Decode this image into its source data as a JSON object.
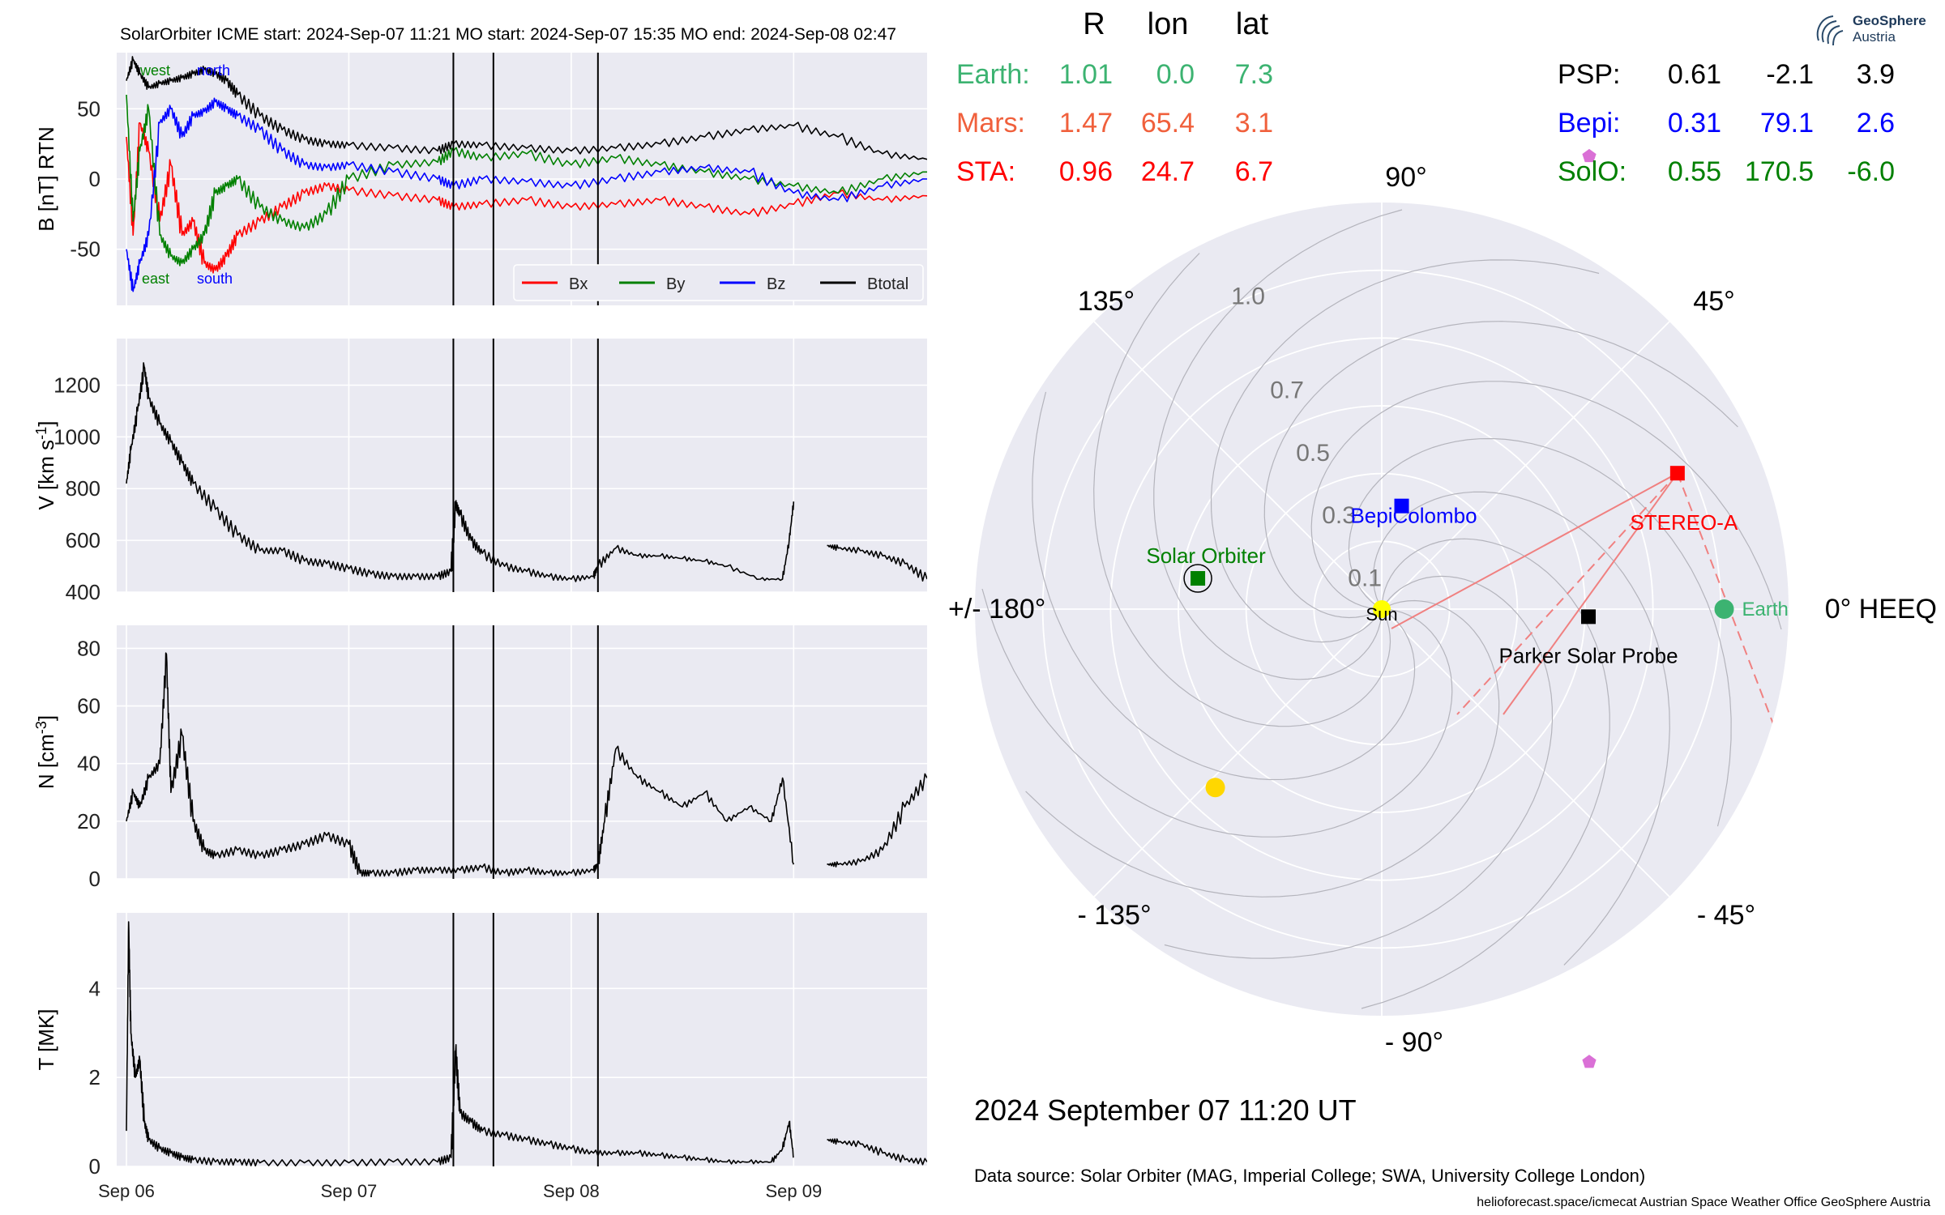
{
  "header": {
    "title": "SolarOrbiter    ICME start: 2024-Sep-07 11:21   MO start: 2024-Sep-07 15:35   MO end: 2024-Sep-08 02:47"
  },
  "colors": {
    "bx": "#ff0000",
    "by": "#008000",
    "bz": "#0000ff",
    "btotal": "#000000",
    "earth": "#3cb371",
    "mars": "#f0603c",
    "sta": "#ff0000",
    "psp": "#000000",
    "bepi": "#0000ff",
    "solo": "#008000",
    "planet_pink": "#da70d6",
    "sun": "#ffff00",
    "venus": "#ffd700",
    "panel_bg": "#eaeaf2"
  },
  "chart_data": [
    {
      "type": "line",
      "ylabel": "B [nT] RTN",
      "xticks": [
        "Sep 06",
        "Sep 07",
        "Sep 08",
        "Sep 09"
      ],
      "ylim": [
        -90,
        90
      ],
      "yticks": [
        -50,
        0,
        50
      ],
      "x_day_range": [
        0,
        3.6
      ],
      "event_lines_day": [
        1.47,
        1.65,
        2.12
      ],
      "direction_labels": {
        "west": "west",
        "north": "north",
        "east": "east",
        "south": "south"
      },
      "series": [
        {
          "name": "Bx",
          "color": "#ff0000",
          "x": [
            0,
            0.03,
            0.06,
            0.1,
            0.15,
            0.2,
            0.25,
            0.3,
            0.35,
            0.4,
            0.45,
            0.5,
            0.6,
            0.7,
            0.8,
            0.9,
            1.0,
            1.2,
            1.4,
            1.47,
            1.6,
            1.8,
            2.0,
            2.2,
            2.4,
            2.6,
            2.8,
            3.0,
            3.2,
            3.4,
            3.6
          ],
          "y": [
            30,
            -40,
            40,
            20,
            -30,
            10,
            -40,
            -30,
            -60,
            -65,
            -55,
            -40,
            -30,
            -20,
            -10,
            -5,
            -8,
            -12,
            -15,
            -20,
            -18,
            -15,
            -20,
            -18,
            -15,
            -20,
            -25,
            -18,
            -10,
            -15,
            -12
          ]
        },
        {
          "name": "By",
          "color": "#008000",
          "x": [
            0,
            0.03,
            0.06,
            0.1,
            0.15,
            0.2,
            0.25,
            0.3,
            0.35,
            0.4,
            0.45,
            0.5,
            0.6,
            0.7,
            0.8,
            0.9,
            1.0,
            1.2,
            1.4,
            1.47,
            1.6,
            1.8,
            2.0,
            2.2,
            2.4,
            2.6,
            2.8,
            3.0,
            3.2,
            3.4,
            3.6
          ],
          "y": [
            60,
            -30,
            20,
            50,
            -40,
            -55,
            -60,
            -50,
            -40,
            -10,
            -5,
            0,
            -20,
            -30,
            -35,
            -25,
            0,
            10,
            12,
            20,
            15,
            18,
            10,
            15,
            10,
            5,
            0,
            -5,
            -10,
            0,
            5
          ]
        },
        {
          "name": "Bz",
          "color": "#0000ff",
          "x": [
            0,
            0.03,
            0.06,
            0.1,
            0.15,
            0.2,
            0.25,
            0.3,
            0.35,
            0.4,
            0.45,
            0.5,
            0.6,
            0.7,
            0.8,
            0.9,
            1.0,
            1.2,
            1.4,
            1.47,
            1.6,
            1.8,
            2.0,
            2.2,
            2.4,
            2.6,
            2.8,
            3.0,
            3.2,
            3.4,
            3.6
          ],
          "y": [
            -50,
            -80,
            -60,
            -40,
            40,
            50,
            30,
            45,
            48,
            55,
            50,
            45,
            35,
            20,
            10,
            8,
            10,
            5,
            0,
            -5,
            0,
            -2,
            -5,
            0,
            5,
            8,
            5,
            -10,
            -15,
            -5,
            0
          ]
        },
        {
          "name": "Btotal",
          "color": "#000000",
          "x": [
            0,
            0.03,
            0.06,
            0.1,
            0.15,
            0.2,
            0.25,
            0.3,
            0.35,
            0.4,
            0.45,
            0.5,
            0.6,
            0.7,
            0.8,
            0.9,
            1.0,
            1.2,
            1.4,
            1.47,
            1.6,
            1.8,
            2.0,
            2.2,
            2.4,
            2.6,
            2.8,
            3.0,
            3.2,
            3.4,
            3.6
          ],
          "y": [
            70,
            85,
            75,
            65,
            68,
            70,
            72,
            75,
            78,
            75,
            70,
            60,
            45,
            35,
            28,
            25,
            24,
            22,
            20,
            25,
            24,
            22,
            20,
            22,
            25,
            30,
            35,
            38,
            30,
            18,
            14
          ]
        }
      ]
    },
    {
      "type": "line",
      "ylabel": "V [km s$^{-1}$]",
      "ylim": [
        400,
        1380
      ],
      "yticks": [
        400,
        600,
        800,
        1000,
        1200
      ],
      "x_day_range": [
        0,
        3.6
      ],
      "series": [
        {
          "name": "",
          "color": "#000000",
          "segments": [
            {
              "x": [
                0,
                0.02,
                0.05,
                0.08,
                0.1,
                0.15,
                0.2,
                0.25,
                0.3,
                0.4,
                0.5,
                0.6,
                0.7,
                0.8,
                0.9,
                1.0,
                1.1,
                1.2,
                1.3,
                1.4,
                1.46,
                1.48,
                1.5,
                1.55,
                1.6,
                1.7,
                1.8,
                1.9,
                2.0,
                2.1,
                2.12,
                2.2,
                2.3,
                2.4,
                2.5,
                2.6,
                2.7,
                2.85,
                2.95,
                2.98,
                3.0
              ],
              "y": [
                820,
                950,
                1100,
                1270,
                1150,
                1050,
                980,
                900,
                820,
                720,
                620,
                560,
                560,
                520,
                510,
                490,
                470,
                460,
                460,
                460,
                480,
                740,
                700,
                600,
                550,
                500,
                480,
                460,
                450,
                460,
                500,
                570,
                540,
                540,
                530,
                520,
                500,
                450,
                450,
                600,
                750
              ]
            },
            {
              "x": [
                3.15,
                3.2,
                3.3,
                3.4,
                3.5,
                3.6
              ],
              "y": [
                580,
                570,
                560,
                540,
                510,
                450
              ]
            }
          ]
        }
      ]
    },
    {
      "type": "line",
      "ylabel": "N [cm$^{-3}$]",
      "ylim": [
        0,
        88
      ],
      "yticks": [
        0,
        20,
        40,
        60,
        80
      ],
      "x_day_range": [
        0,
        3.6
      ],
      "series": [
        {
          "name": "",
          "color": "#000000",
          "segments": [
            {
              "x": [
                0,
                0.03,
                0.06,
                0.1,
                0.15,
                0.18,
                0.2,
                0.25,
                0.3,
                0.35,
                0.4,
                0.5,
                0.6,
                0.7,
                0.8,
                0.9,
                1.0,
                1.05,
                1.1,
                1.2,
                1.3,
                1.4,
                1.5,
                1.6,
                1.7,
                1.8,
                1.9,
                2.0,
                2.1,
                2.12,
                2.15,
                2.2,
                2.3,
                2.4,
                2.5,
                2.6,
                2.7,
                2.8,
                2.9,
                2.95,
                3.0
              ],
              "y": [
                20,
                30,
                25,
                35,
                40,
                78,
                30,
                50,
                20,
                10,
                8,
                10,
                8,
                10,
                12,
                15,
                12,
                2,
                2,
                2,
                3,
                3,
                3,
                4,
                2,
                3,
                2,
                2,
                3,
                5,
                20,
                45,
                35,
                30,
                25,
                30,
                20,
                25,
                20,
                35,
                5
              ]
            },
            {
              "x": [
                3.15,
                3.2,
                3.3,
                3.4,
                3.5,
                3.6
              ],
              "y": [
                5,
                5,
                6,
                10,
                25,
                35
              ]
            }
          ]
        }
      ]
    },
    {
      "type": "line",
      "ylabel": "T [MK]",
      "ylim": [
        0,
        5.7
      ],
      "yticks": [
        0,
        2,
        4
      ],
      "x_day_range": [
        0,
        3.6
      ],
      "series": [
        {
          "name": "",
          "color": "#000000",
          "segments": [
            {
              "x": [
                0,
                0.01,
                0.02,
                0.04,
                0.06,
                0.08,
                0.1,
                0.15,
                0.2,
                0.25,
                0.3,
                0.4,
                0.5,
                0.6,
                0.8,
                1.0,
                1.2,
                1.4,
                1.46,
                1.48,
                1.5,
                1.55,
                1.6,
                1.7,
                1.8,
                1.9,
                2.0,
                2.1,
                2.2,
                2.3,
                2.4,
                2.5,
                2.6,
                2.7,
                2.8,
                2.9,
                2.95,
                2.98,
                3.0
              ],
              "y": [
                0.8,
                5.5,
                3.0,
                2.0,
                2.4,
                1.0,
                0.6,
                0.4,
                0.3,
                0.2,
                0.15,
                0.1,
                0.1,
                0.08,
                0.08,
                0.08,
                0.1,
                0.1,
                0.2,
                2.6,
                1.2,
                1.0,
                0.8,
                0.7,
                0.6,
                0.5,
                0.4,
                0.3,
                0.3,
                0.3,
                0.25,
                0.2,
                0.15,
                0.1,
                0.1,
                0.1,
                0.4,
                1.0,
                0.2
              ]
            },
            {
              "x": [
                3.15,
                3.2,
                3.3,
                3.4,
                3.5,
                3.6
              ],
              "y": [
                0.6,
                0.55,
                0.5,
                0.3,
                0.15,
                0.1
              ]
            }
          ]
        }
      ]
    },
    {
      "type": "scatter",
      "subtype": "polar",
      "angle_labels": [
        {
          "angle": 90,
          "text": "90°"
        },
        {
          "angle": 45,
          "text": "45°"
        },
        {
          "angle": 0,
          "text": "0° HEEQ"
        },
        {
          "angle": -45,
          "text": "- 45°"
        },
        {
          "angle": -90,
          "text": "- 90°"
        },
        {
          "angle": -135,
          "text": "- 135°"
        },
        {
          "angle": 180,
          "text": "+/- 180°"
        },
        {
          "angle": 135,
          "text": "135°"
        }
      ],
      "r_ticks": [
        {
          "r": 0.1,
          "text": "0.1"
        },
        {
          "r": 0.3,
          "text": "0.3"
        },
        {
          "r": 0.5,
          "text": "0.5"
        },
        {
          "r": 0.7,
          "text": "0.7"
        },
        {
          "r": 1.0,
          "text": "1.0"
        }
      ],
      "rmax": 1.2,
      "bodies": [
        {
          "name": "Sun",
          "label": "Sun",
          "r": 0.0,
          "lon": 0.0,
          "marker": "circle",
          "color": "#ffff00"
        },
        {
          "name": "Earth",
          "label": "Earth",
          "r": 1.01,
          "lon": 0.0,
          "marker": "circle",
          "color": "#3cb371"
        },
        {
          "name": "STEREO-A",
          "label": "STEREO-A",
          "r": 0.96,
          "lon": 24.7,
          "marker": "square",
          "color": "#ff0000"
        },
        {
          "name": "Parker Solar Probe",
          "label": "Parker Solar Probe",
          "r": 0.61,
          "lon": -2.1,
          "marker": "square",
          "color": "#000000"
        },
        {
          "name": "BepiColombo",
          "label": "BepiColombo",
          "r": 0.31,
          "lon": 79.1,
          "marker": "square",
          "color": "#0000ff"
        },
        {
          "name": "Solar Orbiter",
          "label": "Solar Orbiter",
          "r": 0.55,
          "lon": 170.5,
          "marker": "square",
          "color": "#008000"
        },
        {
          "name": "Mars",
          "label": "",
          "r": 1.47,
          "lon": 65.4,
          "marker": "pentagon",
          "color": "#da70d6"
        },
        {
          "name": "",
          "label": "",
          "r": 1.47,
          "lon": -65.4,
          "marker": "pentagon",
          "color": "#da70d6"
        },
        {
          "name": "",
          "label": "",
          "r": 0.72,
          "lon": -133.0,
          "marker": "circle",
          "color": "#ffd700"
        }
      ]
    }
  ],
  "position_table": {
    "headers": [
      "R",
      "lon",
      "lat"
    ],
    "left_rows": [
      {
        "name": "Earth:",
        "r": "1.01",
        "lon": "0.0",
        "lat": "7.3"
      },
      {
        "name": "Mars:",
        "r": "1.47",
        "lon": "65.4",
        "lat": "3.1"
      },
      {
        "name": "STA:",
        "r": "0.96",
        "lon": "24.7",
        "lat": "6.7"
      }
    ],
    "right_rows": [
      {
        "name": "PSP:",
        "r": "0.61",
        "lon": "-2.1",
        "lat": "3.9"
      },
      {
        "name": "Bepi:",
        "r": "0.31",
        "lon": "79.1",
        "lat": "2.6"
      },
      {
        "name": "SolO:",
        "r": "0.55",
        "lon": "170.5",
        "lat": "-6.0"
      }
    ]
  },
  "timestamp": "2024 September 07  11:20 UT",
  "data_source": "Data source: Solar Orbiter (MAG, Imperial College; SWA, University College London)",
  "footer": "helioforecast.space/icmecat   Austrian Space Weather Office   GeoSphere Austria",
  "logo": {
    "line1": "GeoSphere",
    "line2": "Austria"
  }
}
